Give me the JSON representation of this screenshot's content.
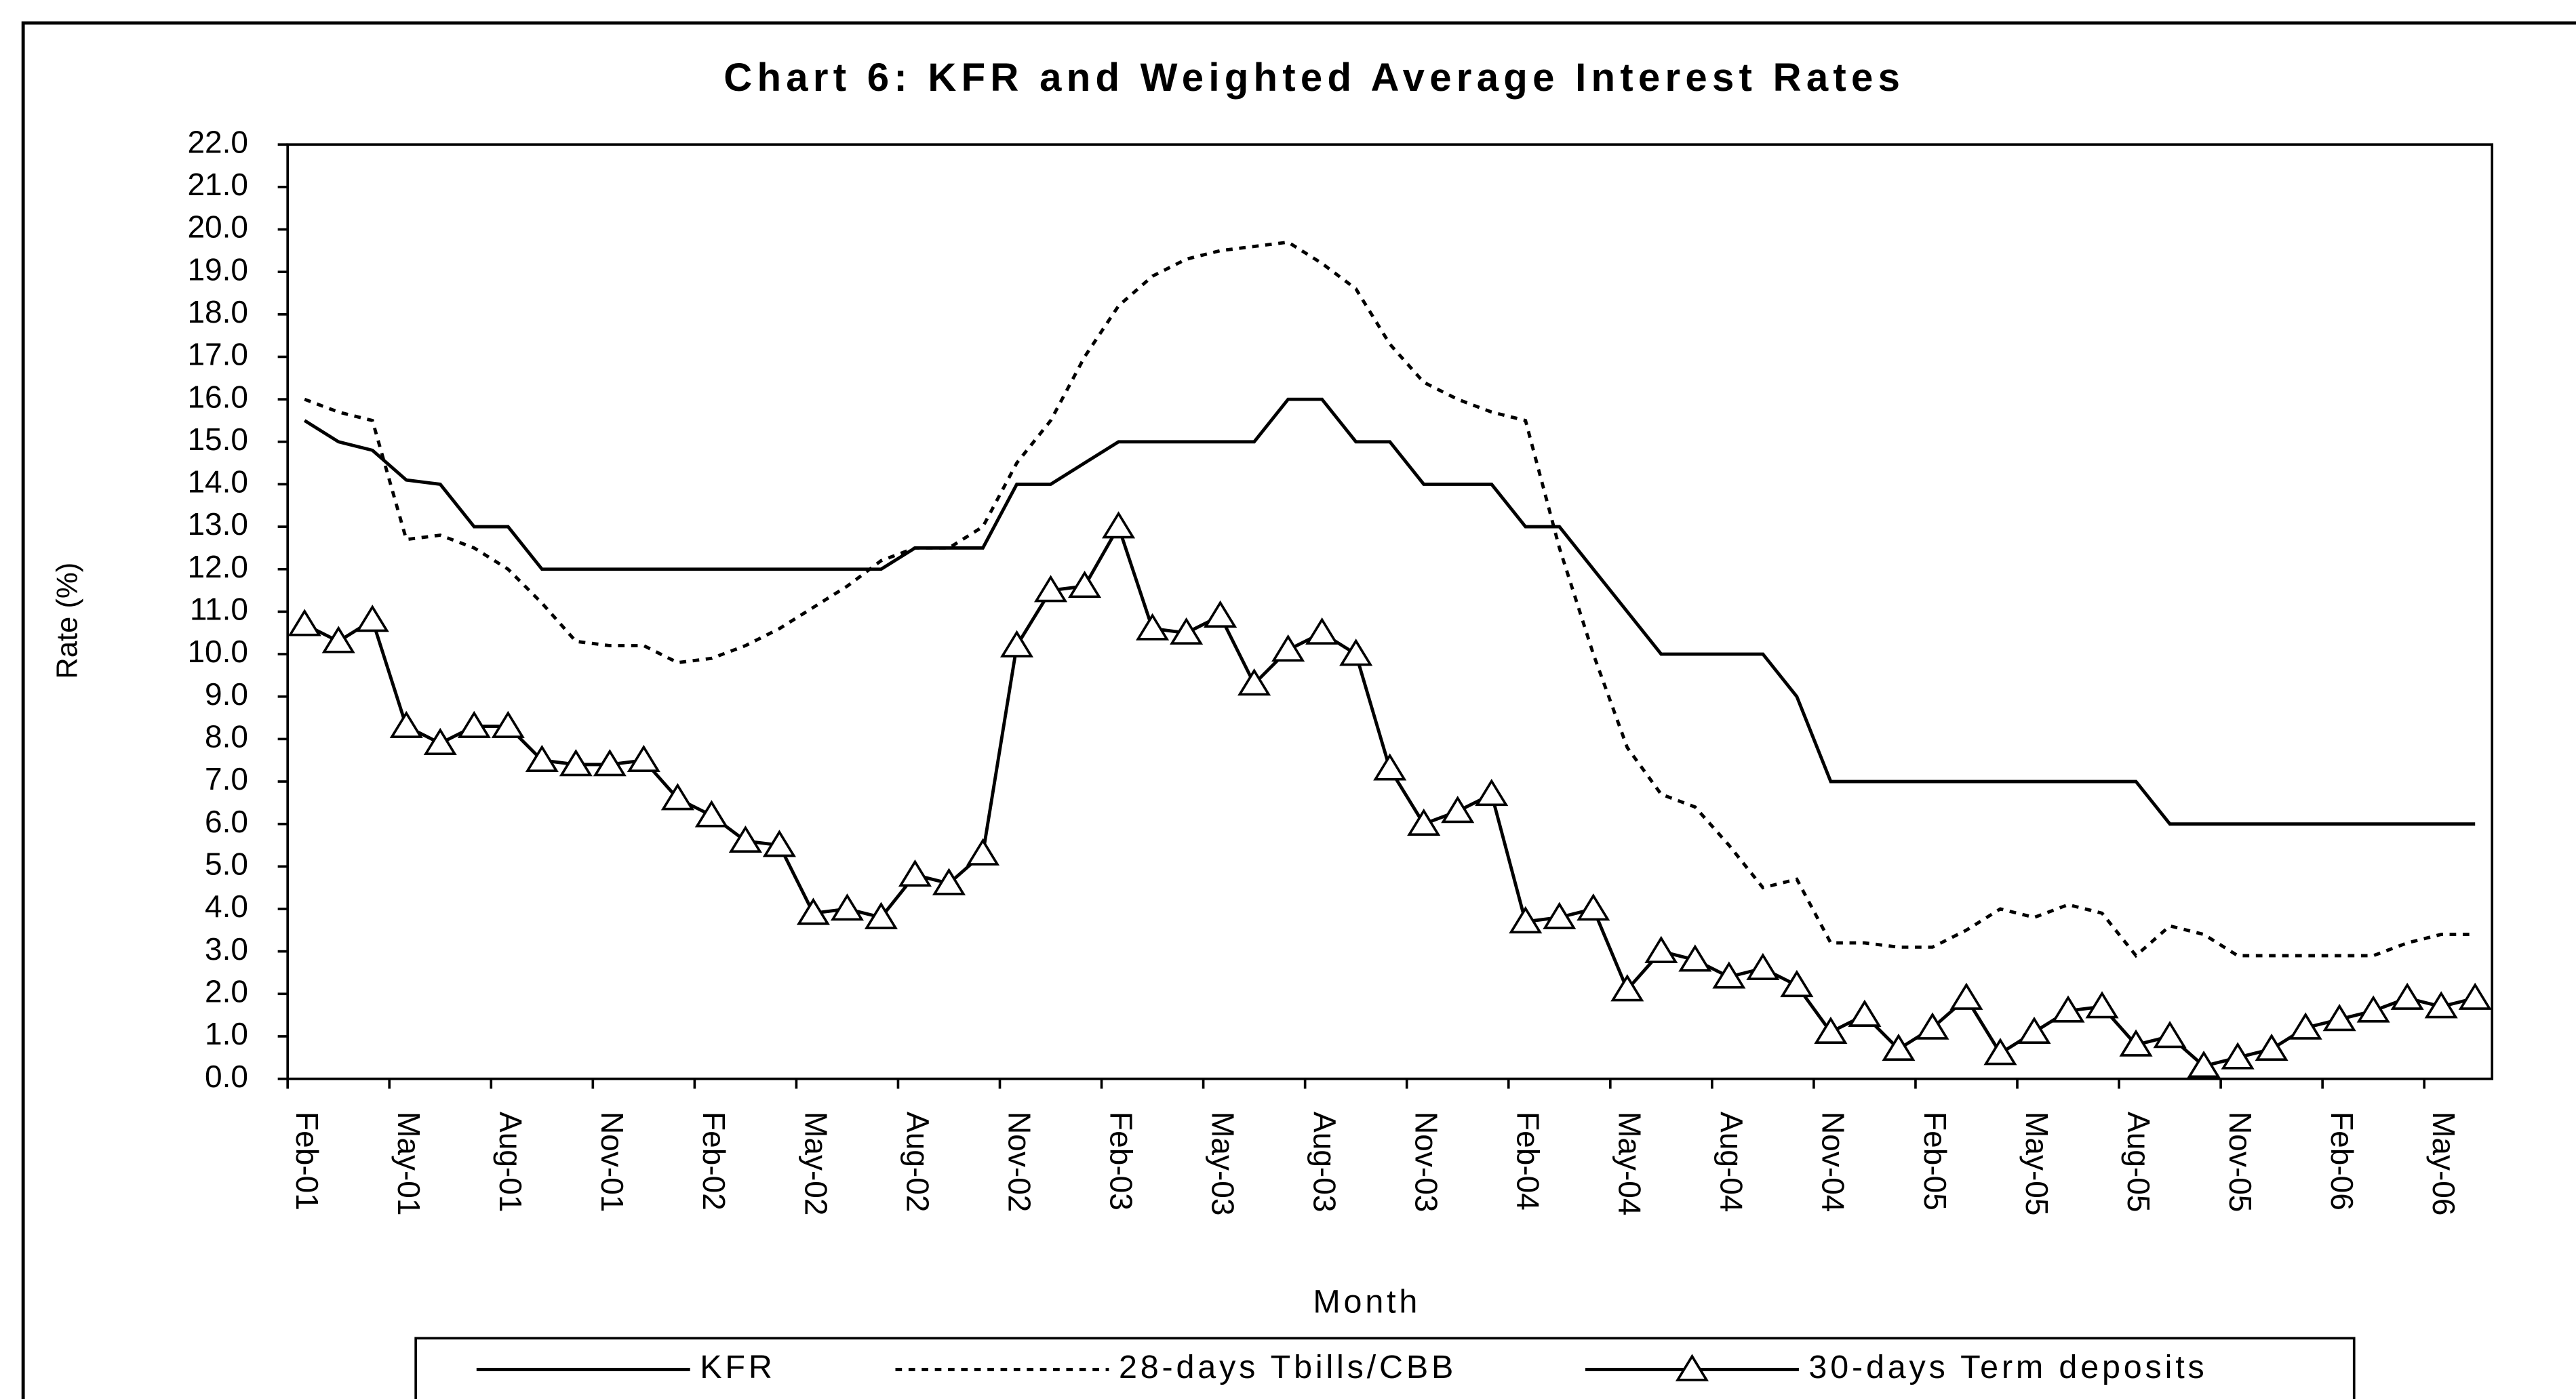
{
  "chart_data": {
    "type": "line",
    "title": "Chart 6: KFR and Weighted Average Interest Rates",
    "x_label": "Month",
    "y_label": "Rate (%)",
    "categories": [
      "Feb-01",
      null,
      null,
      "May-01",
      null,
      null,
      "Aug-01",
      null,
      null,
      "Nov-01",
      null,
      null,
      "Feb-02",
      null,
      null,
      "May-02",
      null,
      null,
      "Aug-02",
      null,
      null,
      "Nov-02",
      null,
      null,
      "Feb-03",
      null,
      null,
      "May-03",
      null,
      null,
      "Aug-03",
      null,
      null,
      "Nov-03",
      null,
      null,
      "Feb-04",
      null,
      null,
      "May-04",
      null,
      null,
      "Aug-04",
      null,
      null,
      "Nov-04",
      null,
      null,
      "Feb-05",
      null,
      null,
      "May-05",
      null,
      null,
      "Aug-05",
      null,
      null,
      "Nov-05",
      null,
      null,
      "Feb-06",
      null,
      null,
      "May-06",
      null
    ],
    "series": [
      {
        "name": "KFR",
        "color": "#000000",
        "dash": "solid",
        "marker": "none",
        "values": [
          15.5,
          15.0,
          14.8,
          14.1,
          14.0,
          13.0,
          13.0,
          12.0,
          12.0,
          12.0,
          12.0,
          12.0,
          12.0,
          12.0,
          12.0,
          12.0,
          12.0,
          12.0,
          12.5,
          12.5,
          12.5,
          14.0,
          14.0,
          14.5,
          15.0,
          15.0,
          15.0,
          15.0,
          15.0,
          16.0,
          16.0,
          15.0,
          15.0,
          14.0,
          14.0,
          14.0,
          13.0,
          13.0,
          12.0,
          11.0,
          10.0,
          10.0,
          10.0,
          10.0,
          9.0,
          7.0,
          7.0,
          7.0,
          7.0,
          7.0,
          7.0,
          7.0,
          7.0,
          7.0,
          7.0,
          6.0,
          6.0,
          6.0,
          6.0,
          6.0,
          6.0,
          6.0,
          6.0,
          6.0,
          6.0
        ]
      },
      {
        "name": "28-days Tbills/CBB",
        "color": "#000000",
        "dash": "dashed",
        "marker": "none",
        "values": [
          16.0,
          15.7,
          15.5,
          12.7,
          12.8,
          12.5,
          12.0,
          11.2,
          10.3,
          10.2,
          10.2,
          9.8,
          9.9,
          10.2,
          10.6,
          11.1,
          11.6,
          12.2,
          12.5,
          12.5,
          13.0,
          14.5,
          15.5,
          17.0,
          18.2,
          18.9,
          19.3,
          19.5,
          19.6,
          19.7,
          19.2,
          18.6,
          17.3,
          16.4,
          16.0,
          15.7,
          15.5,
          12.5,
          10.0,
          7.8,
          6.7,
          6.4,
          5.5,
          4.5,
          4.7,
          3.2,
          3.2,
          3.1,
          3.1,
          3.5,
          4.0,
          3.8,
          4.1,
          3.9,
          2.9,
          3.6,
          3.4,
          2.9,
          2.9,
          2.9,
          2.9,
          2.9,
          3.2,
          3.4,
          3.4
        ]
      },
      {
        "name": "30-days Term deposits",
        "color": "#000000",
        "dash": "solid",
        "marker": "triangle",
        "values": [
          10.7,
          10.3,
          10.8,
          8.3,
          7.9,
          8.3,
          8.3,
          7.5,
          7.4,
          7.4,
          7.5,
          6.6,
          6.2,
          5.6,
          5.5,
          3.9,
          4.0,
          3.8,
          4.8,
          4.6,
          5.3,
          10.2,
          11.5,
          11.6,
          13.0,
          10.6,
          10.5,
          10.9,
          9.3,
          10.1,
          10.5,
          10.0,
          7.3,
          6.0,
          6.3,
          6.7,
          3.7,
          3.8,
          4.0,
          2.1,
          3.0,
          2.8,
          2.4,
          2.6,
          2.2,
          1.1,
          1.5,
          0.7,
          1.2,
          1.9,
          0.6,
          1.1,
          1.6,
          1.7,
          0.8,
          1.0,
          0.3,
          0.5,
          0.7,
          1.2,
          1.4,
          1.6,
          1.9,
          1.7,
          1.9
        ]
      }
    ],
    "ylim": [
      0,
      22
    ],
    "yticks": [
      {
        "value": 0,
        "label": "0.0"
      },
      {
        "value": 1,
        "label": "1.0"
      },
      {
        "value": 2,
        "label": "2.0"
      },
      {
        "value": 3,
        "label": "3.0"
      },
      {
        "value": 4,
        "label": "4.0"
      },
      {
        "value": 5,
        "label": "5.0"
      },
      {
        "value": 6,
        "label": "6.0"
      },
      {
        "value": 7,
        "label": "7.0"
      },
      {
        "value": 8,
        "label": "8.0"
      },
      {
        "value": 9,
        "label": "9.0"
      },
      {
        "value": 10,
        "label": "10.0"
      },
      {
        "value": 11,
        "label": "11.0"
      },
      {
        "value": 12,
        "label": "12.0"
      },
      {
        "value": 13,
        "label": "13.0"
      },
      {
        "value": 14,
        "label": "14.0"
      },
      {
        "value": 15,
        "label": "15.0"
      },
      {
        "value": 16,
        "label": "16.0"
      },
      {
        "value": 17,
        "label": "17.0"
      },
      {
        "value": 18,
        "label": "18.0"
      },
      {
        "value": 19,
        "label": "19.0"
      },
      {
        "value": 20,
        "label": "20.0"
      },
      {
        "value": 21,
        "label": "21.0"
      },
      {
        "value": 22,
        "label": "22.0"
      }
    ],
    "grid": false,
    "legend": "bottom"
  }
}
